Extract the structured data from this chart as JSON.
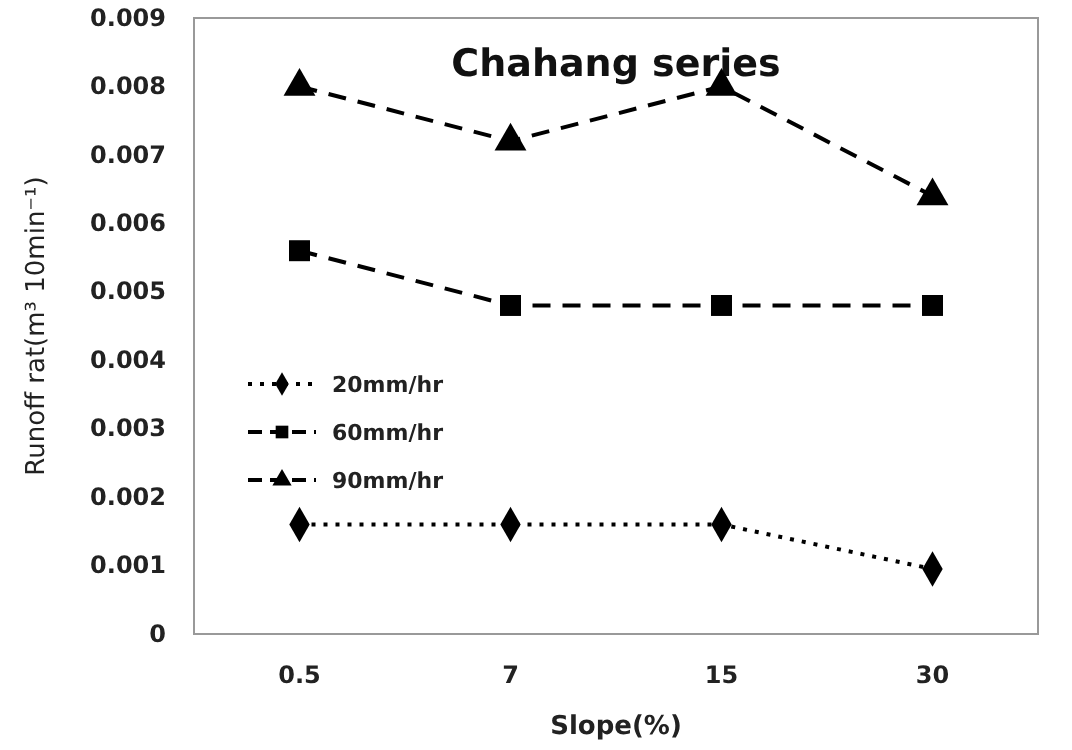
{
  "chart_data": {
    "type": "line",
    "title": "Chahang series",
    "xlabel": "Slope(%)",
    "ylabel": "Runoff rat(m³ 10min⁻¹)",
    "categories": [
      "0.5",
      "7",
      "15",
      "30"
    ],
    "series": [
      {
        "name": "20mm/hr",
        "color": "#000000",
        "marker": "diamond",
        "line_style": "dotted",
        "values": [
          0.0016,
          0.0016,
          0.0016,
          0.00095
        ]
      },
      {
        "name": "60mm/hr",
        "color": "#000000",
        "marker": "square",
        "line_style": "dashed",
        "values": [
          0.0056,
          0.0048,
          0.0048,
          0.0048
        ]
      },
      {
        "name": "90mm/hr",
        "color": "#000000",
        "marker": "triangle",
        "line_style": "dashed",
        "values": [
          0.008,
          0.0072,
          0.008,
          0.0064
        ]
      }
    ],
    "ylim": [
      0,
      0.009
    ],
    "yticks": [
      0,
      0.001,
      0.002,
      0.003,
      0.004,
      0.005,
      0.006,
      0.007,
      0.008,
      0.009
    ],
    "grid": false,
    "legend": "left"
  }
}
